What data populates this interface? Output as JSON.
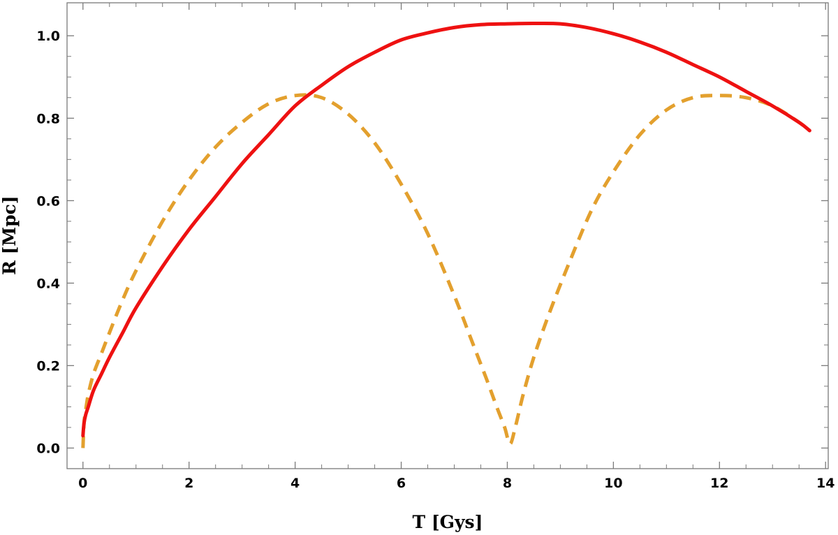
{
  "chart_data": {
    "type": "line",
    "xlabel": "T [Gys]",
    "ylabel": "R [Mpc]",
    "xlim": [
      -0.3,
      14.05
    ],
    "ylim": [
      -0.05,
      1.08
    ],
    "xticks": [
      0,
      2,
      4,
      6,
      8,
      10,
      12,
      14
    ],
    "xtick_labels": [
      "0",
      "2",
      "4",
      "6",
      "8",
      "10",
      "12",
      "14"
    ],
    "yticks": [
      0.0,
      0.2,
      0.4,
      0.6,
      0.8,
      1.0
    ],
    "ytick_labels": [
      "0.0",
      "0.2",
      "0.4",
      "0.6",
      "0.8",
      "1.0"
    ],
    "grid": false,
    "frame": true,
    "series": [
      {
        "color": "#ee1111",
        "style": "solid",
        "x": [
          0.0,
          0.02,
          0.05,
          0.1,
          0.2,
          0.35,
          0.5,
          0.75,
          1.0,
          1.5,
          2.0,
          2.5,
          3.0,
          3.5,
          4.0,
          4.5,
          5.0,
          5.5,
          6.0,
          6.5,
          7.0,
          7.5,
          8.0,
          8.5,
          9.0,
          9.5,
          10.0,
          10.5,
          11.0,
          11.5,
          12.0,
          12.5,
          13.0,
          13.5,
          13.7
        ],
        "y": [
          0.03,
          0.06,
          0.08,
          0.1,
          0.14,
          0.18,
          0.22,
          0.28,
          0.34,
          0.44,
          0.53,
          0.61,
          0.69,
          0.76,
          0.83,
          0.88,
          0.925,
          0.96,
          0.99,
          1.007,
          1.02,
          1.027,
          1.029,
          1.03,
          1.029,
          1.02,
          1.005,
          0.985,
          0.96,
          0.93,
          0.9,
          0.865,
          0.83,
          0.79,
          0.77
        ]
      },
      {
        "color": "#e3a02e",
        "style": "dashed",
        "x": [
          0.0,
          0.02,
          0.05,
          0.1,
          0.2,
          0.35,
          0.5,
          0.75,
          1.0,
          1.5,
          2.0,
          2.5,
          3.0,
          3.5,
          4.0,
          4.5,
          5.0,
          5.5,
          6.0,
          6.5,
          7.0,
          7.3,
          7.6,
          7.8,
          7.95,
          8.05,
          8.15,
          8.3,
          8.5,
          8.8,
          9.2,
          9.6,
          10.0,
          10.5,
          11.0,
          11.5,
          12.0,
          12.5,
          13.0,
          13.5,
          13.7
        ],
        "y": [
          0.0,
          0.06,
          0.09,
          0.13,
          0.18,
          0.23,
          0.28,
          0.36,
          0.43,
          0.55,
          0.65,
          0.73,
          0.79,
          0.835,
          0.855,
          0.85,
          0.81,
          0.74,
          0.64,
          0.52,
          0.37,
          0.27,
          0.17,
          0.1,
          0.05,
          0.01,
          0.05,
          0.13,
          0.22,
          0.33,
          0.46,
          0.58,
          0.67,
          0.76,
          0.82,
          0.85,
          0.855,
          0.85,
          0.83,
          0.79,
          0.77
        ]
      }
    ]
  }
}
